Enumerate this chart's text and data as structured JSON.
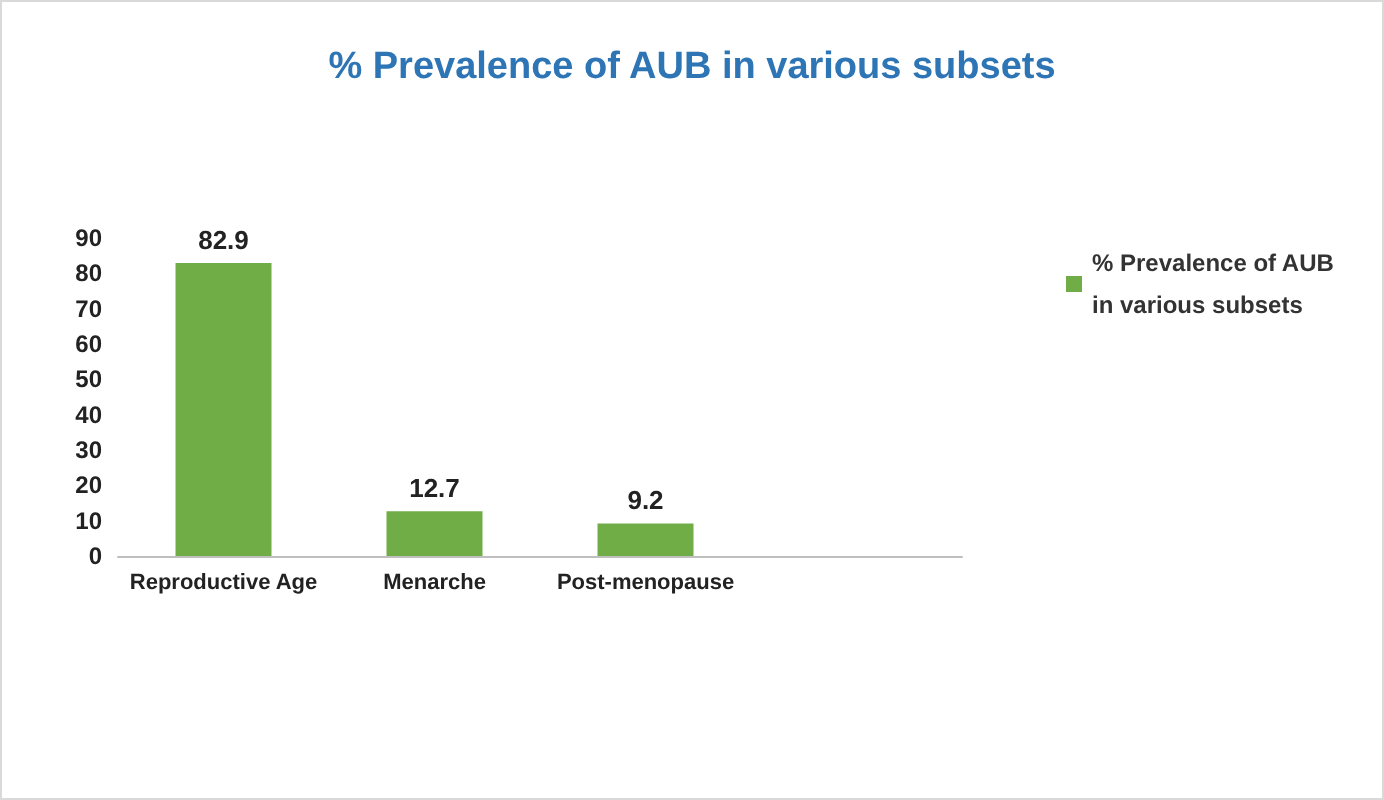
{
  "chart_data": {
    "type": "bar",
    "title": "% Prevalence of AUB in various subsets",
    "categories": [
      "Reproductive Age",
      "Menarche",
      "Post-menopause",
      null
    ],
    "series": [
      {
        "name": "% Prevalence of AUB in various subsets",
        "color": "#70ad47",
        "values": [
          82.9,
          12.7,
          9.2,
          null
        ]
      }
    ],
    "ylim": [
      0,
      90
    ],
    "yticks": [
      0,
      10,
      20,
      30,
      40,
      50,
      60,
      70,
      80,
      90
    ],
    "grid": false,
    "legend": "right",
    "data_labels": true
  }
}
